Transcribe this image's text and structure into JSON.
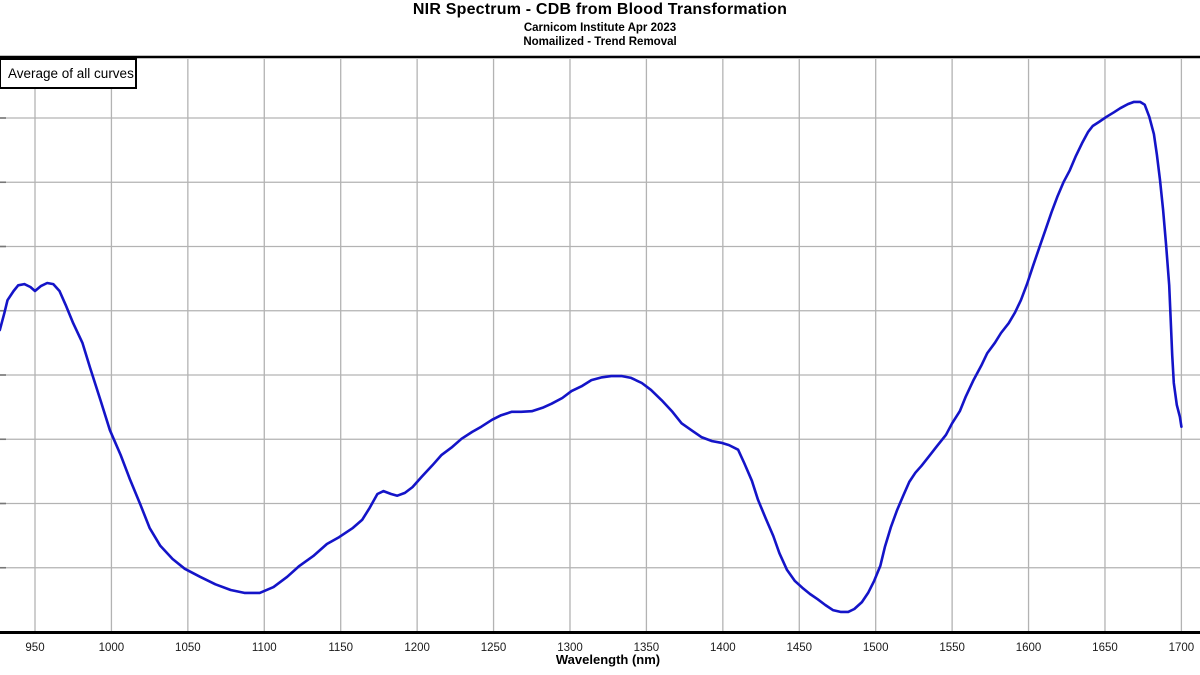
{
  "header": {
    "title": "NIR Spectrum - CDB from Blood Transformation",
    "subtitle1": "Carnicom Institute Apr 2023",
    "subtitle2": "Nomailized - Trend Removal"
  },
  "legend": {
    "label": "Average of all curves"
  },
  "colors": {
    "curve": "#1414c8",
    "gridline": "#b3b3b3",
    "axis": "#000000",
    "tick_label": "#1a1a1a",
    "background": "#ffffff"
  },
  "chart_data": {
    "type": "line",
    "title": "NIR Spectrum - CDB from Blood Transformation",
    "subtitle": "Carnicom Institute Apr 2023",
    "note": "Nomailized - Trend Removal",
    "xlabel": "Wavelength (nm)",
    "ylabel": "",
    "grid": true,
    "legend_position": "top-left",
    "legend_entries": [
      "Average of all curves"
    ],
    "x_range": [
      927,
      1701
    ],
    "x_ticks": [
      950,
      1000,
      1050,
      1100,
      1150,
      1200,
      1250,
      1300,
      1350,
      1400,
      1450,
      1500,
      1550,
      1600,
      1650,
      1700
    ],
    "y_axis": {
      "labels_visible": false,
      "gridline_rows": 10,
      "value_scale": "relative 0-1 of plot height"
    },
    "series": [
      {
        "name": "Average of all curves",
        "color": "#1414c8",
        "points": [
          [
            927,
            0.525
          ],
          [
            930,
            0.555
          ],
          [
            932,
            0.577
          ],
          [
            936,
            0.593
          ],
          [
            939,
            0.603
          ],
          [
            943,
            0.605
          ],
          [
            947,
            0.6
          ],
          [
            950,
            0.593
          ],
          [
            954,
            0.602
          ],
          [
            958,
            0.607
          ],
          [
            962,
            0.605
          ],
          [
            966,
            0.593
          ],
          [
            970,
            0.569
          ],
          [
            975,
            0.537
          ],
          [
            981,
            0.503
          ],
          [
            986,
            0.46
          ],
          [
            993,
            0.402
          ],
          [
            999,
            0.351
          ],
          [
            1006,
            0.308
          ],
          [
            1012,
            0.266
          ],
          [
            1019,
            0.221
          ],
          [
            1025,
            0.181
          ],
          [
            1032,
            0.15
          ],
          [
            1040,
            0.127
          ],
          [
            1048,
            0.11
          ],
          [
            1058,
            0.096
          ],
          [
            1068,
            0.083
          ],
          [
            1078,
            0.073
          ],
          [
            1087,
            0.068
          ],
          [
            1097,
            0.068
          ],
          [
            1106,
            0.078
          ],
          [
            1115,
            0.096
          ],
          [
            1123,
            0.115
          ],
          [
            1132,
            0.132
          ],
          [
            1141,
            0.153
          ],
          [
            1149,
            0.165
          ],
          [
            1158,
            0.181
          ],
          [
            1164,
            0.195
          ],
          [
            1169,
            0.216
          ],
          [
            1174,
            0.24
          ],
          [
            1178,
            0.245
          ],
          [
            1183,
            0.24
          ],
          [
            1187,
            0.237
          ],
          [
            1192,
            0.242
          ],
          [
            1197,
            0.252
          ],
          [
            1203,
            0.27
          ],
          [
            1210,
            0.29
          ],
          [
            1216,
            0.308
          ],
          [
            1223,
            0.322
          ],
          [
            1229,
            0.336
          ],
          [
            1236,
            0.348
          ],
          [
            1242,
            0.357
          ],
          [
            1249,
            0.369
          ],
          [
            1255,
            0.377
          ],
          [
            1262,
            0.383
          ],
          [
            1268,
            0.383
          ],
          [
            1275,
            0.384
          ],
          [
            1282,
            0.39
          ],
          [
            1288,
            0.397
          ],
          [
            1295,
            0.407
          ],
          [
            1301,
            0.419
          ],
          [
            1308,
            0.428
          ],
          [
            1314,
            0.438
          ],
          [
            1321,
            0.443
          ],
          [
            1327,
            0.445
          ],
          [
            1334,
            0.445
          ],
          [
            1340,
            0.442
          ],
          [
            1347,
            0.433
          ],
          [
            1353,
            0.421
          ],
          [
            1360,
            0.403
          ],
          [
            1367,
            0.383
          ],
          [
            1373,
            0.363
          ],
          [
            1380,
            0.35
          ],
          [
            1386,
            0.339
          ],
          [
            1393,
            0.332
          ],
          [
            1399,
            0.329
          ],
          [
            1404,
            0.325
          ],
          [
            1410,
            0.317
          ],
          [
            1414,
            0.294
          ],
          [
            1419,
            0.263
          ],
          [
            1423,
            0.23
          ],
          [
            1428,
            0.198
          ],
          [
            1433,
            0.167
          ],
          [
            1437,
            0.137
          ],
          [
            1442,
            0.108
          ],
          [
            1447,
            0.089
          ],
          [
            1452,
            0.077
          ],
          [
            1457,
            0.066
          ],
          [
            1462,
            0.057
          ],
          [
            1467,
            0.047
          ],
          [
            1472,
            0.038
          ],
          [
            1477,
            0.035
          ],
          [
            1482,
            0.035
          ],
          [
            1486,
            0.04
          ],
          [
            1491,
            0.052
          ],
          [
            1495,
            0.068
          ],
          [
            1499,
            0.089
          ],
          [
            1503,
            0.115
          ],
          [
            1506,
            0.148
          ],
          [
            1510,
            0.183
          ],
          [
            1514,
            0.212
          ],
          [
            1518,
            0.237
          ],
          [
            1522,
            0.261
          ],
          [
            1526,
            0.277
          ],
          [
            1530,
            0.289
          ],
          [
            1535,
            0.306
          ],
          [
            1540,
            0.323
          ],
          [
            1546,
            0.343
          ],
          [
            1550,
            0.363
          ],
          [
            1555,
            0.384
          ],
          [
            1559,
            0.41
          ],
          [
            1564,
            0.438
          ],
          [
            1569,
            0.463
          ],
          [
            1573,
            0.485
          ],
          [
            1578,
            0.503
          ],
          [
            1582,
            0.52
          ],
          [
            1587,
            0.537
          ],
          [
            1591,
            0.555
          ],
          [
            1595,
            0.577
          ],
          [
            1599,
            0.605
          ],
          [
            1603,
            0.637
          ],
          [
            1607,
            0.668
          ],
          [
            1611,
            0.699
          ],
          [
            1615,
            0.73
          ],
          [
            1619,
            0.758
          ],
          [
            1623,
            0.783
          ],
          [
            1627,
            0.803
          ],
          [
            1631,
            0.828
          ],
          [
            1635,
            0.85
          ],
          [
            1639,
            0.87
          ],
          [
            1642,
            0.88
          ],
          [
            1646,
            0.887
          ],
          [
            1651,
            0.896
          ],
          [
            1656,
            0.904
          ],
          [
            1660,
            0.911
          ],
          [
            1665,
            0.918
          ],
          [
            1669,
            0.922
          ],
          [
            1673,
            0.922
          ],
          [
            1676,
            0.917
          ],
          [
            1679,
            0.896
          ],
          [
            1682,
            0.866
          ],
          [
            1684,
            0.83
          ],
          [
            1686,
            0.786
          ],
          [
            1688,
            0.734
          ],
          [
            1690,
            0.673
          ],
          [
            1692,
            0.603
          ],
          [
            1693,
            0.543
          ],
          [
            1694,
            0.482
          ],
          [
            1695,
            0.433
          ],
          [
            1697,
            0.395
          ],
          [
            1699,
            0.374
          ],
          [
            1700,
            0.357
          ]
        ]
      }
    ]
  }
}
